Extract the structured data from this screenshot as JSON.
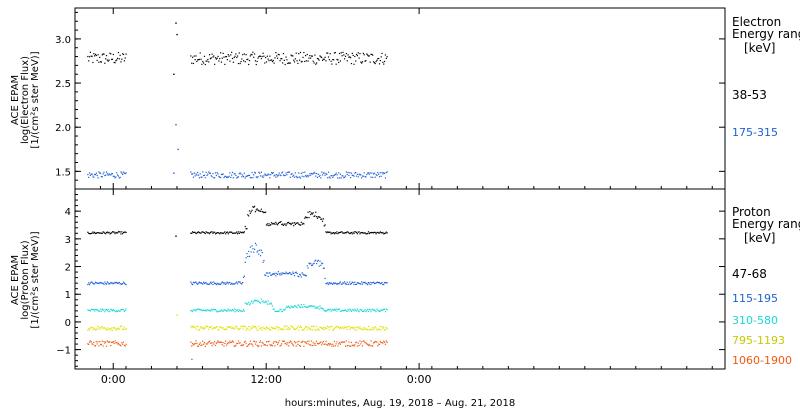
{
  "chart_data": [
    {
      "type": "scatter",
      "panel": "electron",
      "ylabel_lines": [
        "ACE EPAM",
        "log(Electron Flux)",
        "[1/(cm²s ster MeV)]"
      ],
      "ylim": [
        1.3,
        3.35
      ],
      "yticks": [
        1.5,
        2.0,
        2.5,
        3.0
      ],
      "ytick_labels": [
        "1.5",
        "2.0",
        "2.5",
        "3.0"
      ],
      "legend_title_lines": [
        "Electron",
        "Energy range",
        "[keV]"
      ],
      "series": [
        {
          "name": "38-53",
          "color": "#000000",
          "base": 2.78,
          "spread": 0.07,
          "segments": [
            [
              "2018-08-18 22:00",
              "2018-08-19 01:00"
            ],
            [
              "2018-08-19 06:05",
              "2018-08-19 21:30"
            ]
          ],
          "isolated": [
            [
              "2018-08-19 04:55",
              3.18
            ],
            [
              "2018-08-19 05:00",
              3.05
            ],
            [
              "2018-08-19 04:45",
              2.6
            ]
          ]
        },
        {
          "name": "175-315",
          "color": "#1f5fd6",
          "base": 1.46,
          "spread": 0.035,
          "segments": [
            [
              "2018-08-18 22:00",
              "2018-08-19 01:00"
            ],
            [
              "2018-08-19 06:05",
              "2018-08-19 21:30"
            ]
          ],
          "isolated": [
            [
              "2018-08-19 04:55",
              2.03
            ],
            [
              "2018-08-19 05:05",
              1.75
            ],
            [
              "2018-08-19 04:45",
              1.48
            ]
          ]
        }
      ]
    },
    {
      "type": "scatter",
      "panel": "proton",
      "ylabel_lines": [
        "ACE EPAM",
        "log(Proton Flux)",
        "[1/(cm²s ster MeV)]"
      ],
      "ylim": [
        -1.7,
        4.8
      ],
      "yticks": [
        -1,
        0,
        1,
        2,
        3,
        4
      ],
      "ytick_labels": [
        "−1",
        "0",
        "1",
        "2",
        "3",
        "4"
      ],
      "legend_title_lines": [
        "Proton",
        "Energy range",
        "[keV]"
      ],
      "series": [
        {
          "name": "47-68",
          "color": "#000000",
          "base": 3.22,
          "spread": 0.04,
          "segments": [
            [
              "2018-08-18 22:00",
              "2018-08-19 01:00"
            ],
            [
              "2018-08-19 06:05",
              "2018-08-19 21:30"
            ]
          ],
          "bumps": [
            [
              "2018-08-19 10:20",
              "2018-08-19 16:40",
              0.35
            ],
            [
              "2018-08-19 10:30",
              "2018-08-19 12:00",
              0.6
            ],
            [
              "2018-08-19 15:00",
              "2018-08-19 16:30",
              0.4
            ]
          ],
          "isolated": [
            [
              "2018-08-19 04:55",
              3.1
            ]
          ]
        },
        {
          "name": "115-195",
          "color": "#1f5fd6",
          "base": 1.4,
          "spread": 0.05,
          "segments": [
            [
              "2018-08-18 22:00",
              "2018-08-19 01:00"
            ],
            [
              "2018-08-19 06:05",
              "2018-08-19 21:30"
            ]
          ],
          "bumps": [
            [
              "2018-08-19 10:10",
              "2018-08-19 16:40",
              0.35
            ],
            [
              "2018-08-19 10:20",
              "2018-08-19 11:50",
              1.0
            ],
            [
              "2018-08-19 15:10",
              "2018-08-19 16:35",
              0.5
            ]
          ]
        },
        {
          "name": "310-580",
          "color": "#19d6d6",
          "base": 0.42,
          "spread": 0.05,
          "segments": [
            [
              "2018-08-18 22:00",
              "2018-08-19 01:00"
            ],
            [
              "2018-08-19 06:05",
              "2018-08-19 21:30"
            ]
          ],
          "bumps": [
            [
              "2018-08-19 10:20",
              "2018-08-19 12:30",
              0.35
            ],
            [
              "2018-08-19 13:30",
              "2018-08-19 16:30",
              0.15
            ]
          ]
        },
        {
          "name": "795-1193",
          "color": "#e0e000",
          "base": -0.22,
          "spread": 0.08,
          "segments": [
            [
              "2018-08-18 22:00",
              "2018-08-19 01:00"
            ],
            [
              "2018-08-19 06:05",
              "2018-08-19 21:30"
            ]
          ],
          "isolated": [
            [
              "2018-08-19 05:00",
              0.25
            ]
          ]
        },
        {
          "name": "1060-1900",
          "color": "#ef5a12",
          "base": -0.78,
          "spread": 0.1,
          "segments": [
            [
              "2018-08-18 22:00",
              "2018-08-19 01:00"
            ],
            [
              "2018-08-19 06:05",
              "2018-08-19 21:30"
            ]
          ],
          "isolated": [
            [
              "2018-08-19 06:10",
              -1.35
            ]
          ]
        }
      ]
    }
  ],
  "x_axis": {
    "range": [
      "2018-08-18 21:00",
      "2018-08-21 00:00"
    ],
    "ticks": [
      "2018-08-19 00:00",
      "2018-08-19 12:00",
      "2018-08-20 00:00"
    ],
    "tick_labels": [
      "0:00",
      "12:00",
      "0:00"
    ],
    "label": "hours:minutes, Aug. 19, 2018 – Aug. 21, 2018"
  }
}
